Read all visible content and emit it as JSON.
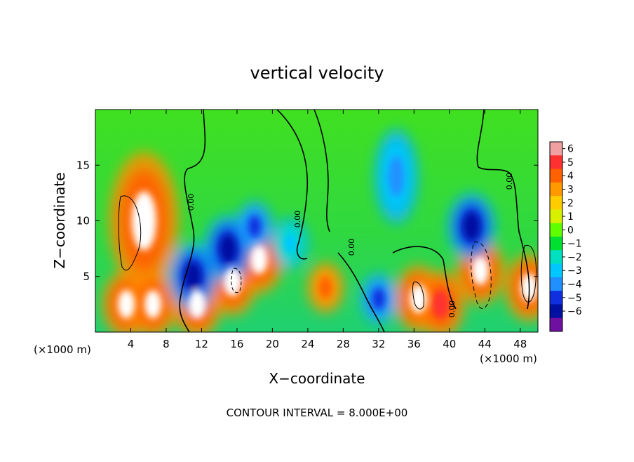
{
  "chart_data": {
    "type": "heatmap",
    "title": "vertical velocity",
    "xlabel": "X−coordinate",
    "ylabel": "Z−coordinate",
    "x_unit_left": "(×1000 m)",
    "x_unit_right": "(×1000 m)",
    "xlim": [
      0,
      50
    ],
    "ylim": [
      0,
      20
    ],
    "xticks": [
      4,
      8,
      12,
      16,
      20,
      24,
      28,
      32,
      36,
      40,
      44,
      48
    ],
    "yticks": [
      5,
      10,
      15
    ],
    "colorbar": {
      "range": [
        -6,
        6
      ],
      "ticks": [
        "6",
        "5",
        "4",
        "3",
        "2",
        "1",
        "0",
        "−1",
        "−2",
        "−3",
        "−4",
        "−5",
        "−6"
      ],
      "colors": [
        "#f0a0a0",
        "#ff3030",
        "#ff6000",
        "#ff9900",
        "#ffcc00",
        "#d8f000",
        "#60ff00",
        "#00e030",
        "#00e0c0",
        "#00c8ff",
        "#2090ff",
        "#1030e0",
        "#0010a0",
        "#7010a0"
      ]
    },
    "features": [
      {
        "kind": "updraft",
        "x": 5.5,
        "z": 10,
        "value": 6
      },
      {
        "kind": "updraft",
        "x": 3.5,
        "z": 2.5,
        "value": 6
      },
      {
        "kind": "updraft",
        "x": 6.5,
        "z": 2.5,
        "value": 6
      },
      {
        "kind": "updraft",
        "x": 11.5,
        "z": 2.5,
        "value": 6
      },
      {
        "kind": "updraft",
        "x": 15.5,
        "z": 4.5,
        "value": 6
      },
      {
        "kind": "updraft",
        "x": 18.5,
        "z": 6.5,
        "value": 6
      },
      {
        "kind": "updraft",
        "x": 26,
        "z": 4,
        "value": 4
      },
      {
        "kind": "updraft",
        "x": 36.5,
        "z": 3,
        "value": 6
      },
      {
        "kind": "updraft",
        "x": 39,
        "z": 2.5,
        "value": 5
      },
      {
        "kind": "updraft",
        "x": 43.5,
        "z": 5.5,
        "value": 6
      },
      {
        "kind": "updraft",
        "x": 49,
        "z": 4,
        "value": 6
      },
      {
        "kind": "downdraft",
        "x": 15,
        "z": 7.5,
        "value": -5
      },
      {
        "kind": "downdraft",
        "x": 18,
        "z": 9.5,
        "value": -4
      },
      {
        "kind": "downdraft",
        "x": 11,
        "z": 5,
        "value": -5
      },
      {
        "kind": "downdraft",
        "x": 34,
        "z": 14,
        "value": -3
      },
      {
        "kind": "downdraft",
        "x": 32,
        "z": 3,
        "value": -4
      },
      {
        "kind": "downdraft",
        "x": 42.5,
        "z": 9.5,
        "value": -5
      },
      {
        "kind": "downdraft",
        "x": 22,
        "z": 8,
        "value": -2
      }
    ],
    "contour_zero_labels": [
      "0.00",
      "0.00",
      "0.00",
      "0.00",
      "0.00"
    ],
    "contour_interval_text": "CONTOUR INTERVAL = 8.000E+00"
  }
}
